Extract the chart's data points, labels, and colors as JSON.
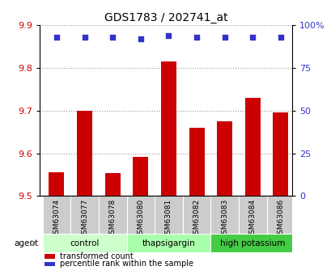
{
  "title": "GDS1783 / 202741_at",
  "categories": [
    "GSM63074",
    "GSM63077",
    "GSM63078",
    "GSM63080",
    "GSM63081",
    "GSM63082",
    "GSM63083",
    "GSM63084",
    "GSM63086"
  ],
  "bar_values": [
    9.555,
    9.7,
    9.553,
    9.592,
    9.815,
    9.66,
    9.675,
    9.73,
    9.695
  ],
  "percentile_values": [
    93,
    93,
    93,
    92,
    94,
    93,
    93,
    93,
    93
  ],
  "bar_color": "#cc0000",
  "dot_color": "#3333cc",
  "ylim_left": [
    9.5,
    9.9
  ],
  "ylim_right": [
    0,
    100
  ],
  "yticks_left": [
    9.5,
    9.6,
    9.7,
    9.8,
    9.9
  ],
  "yticks_right": [
    0,
    25,
    50,
    75,
    100
  ],
  "ytick_labels_right": [
    "0",
    "25",
    "50",
    "75",
    "100%"
  ],
  "groups": [
    {
      "label": "control",
      "indices": [
        0,
        1,
        2
      ],
      "color": "#ccffcc"
    },
    {
      "label": "thapsigargin",
      "indices": [
        3,
        4,
        5
      ],
      "color": "#aaffaa"
    },
    {
      "label": "high potassium",
      "indices": [
        6,
        7,
        8
      ],
      "color": "#44cc44"
    }
  ],
  "legend_items": [
    {
      "label": "transformed count",
      "color": "#cc0000"
    },
    {
      "label": "percentile rank within the sample",
      "color": "#3333cc"
    }
  ],
  "grid_color": "#999999",
  "bar_bottom": 9.5,
  "tick_label_color_left": "#cc0000",
  "tick_label_color_right": "#3333cc",
  "sample_box_color": "#cccccc",
  "x_data_min": -0.6,
  "x_data_max": 8.4
}
